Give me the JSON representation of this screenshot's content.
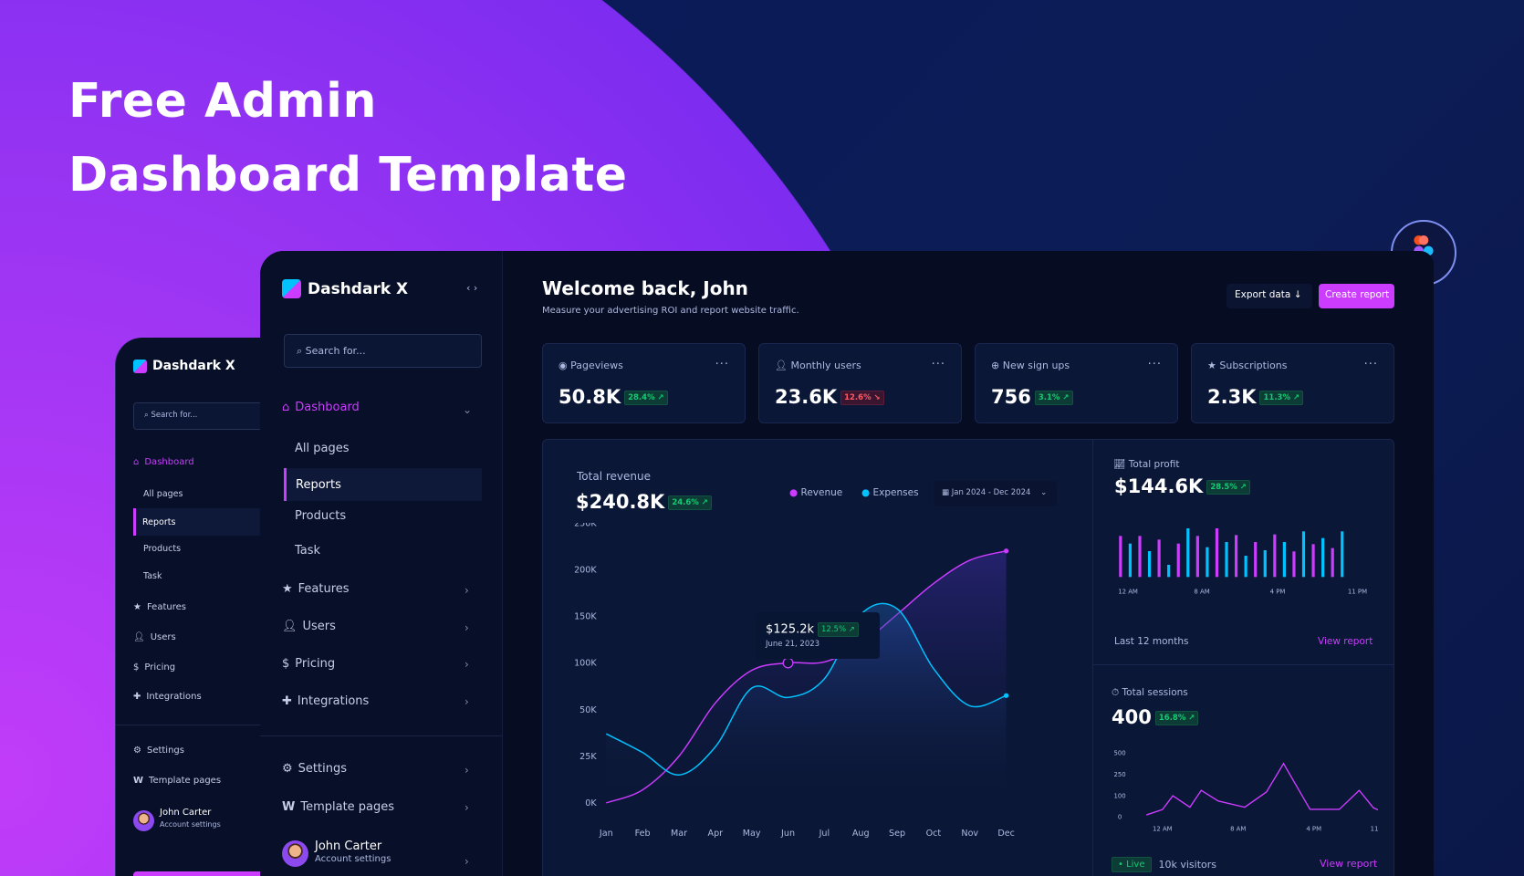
{
  "hero": {
    "line1": "Free Admin",
    "line2": "Dashboard Template"
  },
  "brand": {
    "name": "Dashdark X",
    "collapse_icon": "code-brackets-icon"
  },
  "colors": {
    "accent": "#cb3cff",
    "cyan": "#00c2ff",
    "green": "#14ca74",
    "red": "#ff5a65",
    "bg": "#081029"
  },
  "sidebar": {
    "search_placeholder": "Search for...",
    "dashboard": "Dashboard",
    "sub": [
      "All pages",
      "Reports",
      "Products",
      "Task"
    ],
    "active_sub": "Reports",
    "items": [
      {
        "label": "Features",
        "icon": "star-icon"
      },
      {
        "label": "Users",
        "icon": "user-icon"
      },
      {
        "label": "Pricing",
        "icon": "dollar-icon"
      },
      {
        "label": "Integrations",
        "icon": "puzzle-icon"
      }
    ],
    "bottom": [
      {
        "label": "Settings",
        "icon": "gear-icon"
      },
      {
        "label": "Template pages",
        "icon": "w-icon"
      }
    ],
    "user": {
      "name": "John Carter",
      "sub": "Account settings"
    }
  },
  "header": {
    "title": "Welcome back, John",
    "subtitle": "Measure your advertising ROI and report website traffic.",
    "export": "Export data",
    "create": "Create report"
  },
  "stats": [
    {
      "label": "Pageviews",
      "value": "50.8K",
      "change": "28.4%",
      "dir": "up",
      "icon": "eye-icon"
    },
    {
      "label": "Monthly users",
      "value": "23.6K",
      "change": "12.6%",
      "dir": "down",
      "icon": "user-icon"
    },
    {
      "label": "New sign ups",
      "value": "756",
      "change": "3.1%",
      "dir": "up",
      "icon": "plus-circle-icon"
    },
    {
      "label": "Subscriptions",
      "value": "2.3K",
      "change": "11.3%",
      "dir": "up",
      "icon": "star-icon"
    }
  ],
  "revenue": {
    "title": "Total revenue",
    "value": "$240.8K",
    "change": "24.6%",
    "legend": [
      "Revenue",
      "Expenses"
    ],
    "date_range": "Jan 2024 - Dec 2024",
    "tooltip": {
      "value": "$125.2k",
      "change": "12.5%",
      "date": "June 21, 2023"
    }
  },
  "profit": {
    "title": "Total profit",
    "value": "$144.6K",
    "change": "28.5%",
    "footer": "Last 12 months",
    "link": "View report"
  },
  "sessions": {
    "title": "Total sessions",
    "value": "400",
    "change": "16.8%",
    "live": "Live",
    "visitors": "10k visitors",
    "link": "View report"
  },
  "chart_data": [
    {
      "type": "area",
      "name": "revenue",
      "categories": [
        "Jan",
        "Feb",
        "Mar",
        "Apr",
        "May",
        "Jun",
        "Jul",
        "Aug",
        "Sep",
        "Oct",
        "Nov",
        "Dec"
      ],
      "yticks": [
        "0K",
        "25K",
        "50K",
        "100K",
        "150K",
        "200K",
        "250K"
      ],
      "ytick_values": [
        0,
        25,
        50,
        100,
        150,
        200,
        250
      ],
      "series": [
        {
          "name": "Revenue",
          "color": "#cb3cff",
          "values": [
            0,
            7,
            25,
            57,
            92,
            100,
            101,
            120,
            152,
            185,
            210,
            220
          ]
        },
        {
          "name": "Expenses",
          "color": "#00c2ff",
          "values": [
            37,
            27,
            15,
            30,
            73,
            63,
            83,
            152,
            158,
            94,
            54,
            65
          ]
        }
      ],
      "highlight": {
        "category": "Jun",
        "value": 100
      }
    },
    {
      "type": "bar",
      "name": "profit",
      "xticks": [
        "12 AM",
        "8 AM",
        "4 PM",
        "11 PM"
      ],
      "values": [
        135,
        110,
        135,
        85,
        123,
        40,
        110,
        160,
        135,
        98,
        160,
        115,
        138,
        70,
        115,
        88,
        140,
        115,
        84,
        150,
        108,
        128,
        95,
        150
      ],
      "colors": [
        "#cb3cff",
        "#00c2ff"
      ]
    },
    {
      "type": "line",
      "name": "sessions",
      "xticks": [
        "12 AM",
        "8 AM",
        "4 PM",
        "11 PM"
      ],
      "yticks": [
        "0",
        "100",
        "250",
        "500"
      ],
      "ytick_values": [
        0,
        100,
        250,
        500
      ],
      "x": [
        -1.7,
        0,
        1.1,
        2.9,
        4.1,
        5.9,
        8.7,
        11,
        12.8,
        15.6,
        18.7,
        20.8,
        22.3,
        24
      ],
      "values": [
        11,
        36,
        101,
        47,
        139,
        76,
        47,
        128,
        379,
        37,
        37,
        139,
        44,
        11
      ],
      "color": "#cb3cff"
    }
  ]
}
